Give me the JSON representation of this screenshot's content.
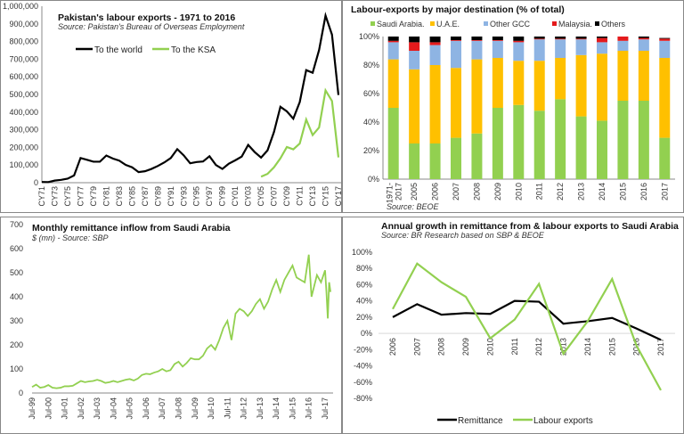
{
  "colors": {
    "black": "#000000",
    "green": "#92d050",
    "yellow": "#ffc000",
    "blue": "#8eb4e3",
    "red": "#e41a1c",
    "gray": "#d9d9d9"
  },
  "chart_data": [
    {
      "type": "line",
      "title": "Pakistan's labour exports - 1971 to 2016",
      "subtitle": "Source: Pakistan's Bureau of Overseas Employment",
      "ylim": [
        0,
        1000000
      ],
      "yticks": [
        "0",
        "100,000",
        "200,000",
        "300,000",
        "400,000",
        "500,000",
        "600,000",
        "700,000",
        "800,000",
        "900,000",
        "1,000,000"
      ],
      "xticks": [
        "CY71",
        "CY73",
        "CY75",
        "CY77",
        "CY79",
        "CY81",
        "CY83",
        "CY85",
        "CY87",
        "CY89",
        "CY91",
        "CY93",
        "CY95",
        "CY97",
        "CY99",
        "CY01",
        "CY03",
        "CY05",
        "CY07",
        "CY09",
        "CY11",
        "CY13",
        "CY15",
        "CY17"
      ],
      "x_start": 1971,
      "legend": "top-left",
      "series": [
        {
          "name": "To the world",
          "color": "#000000",
          "start": 1971,
          "values": [
            4000,
            3500,
            12000,
            16000,
            23000,
            41000,
            140000,
            130000,
            119000,
            119000,
            154000,
            137000,
            125000,
            101000,
            87000,
            60000,
            65000,
            78000,
            95000,
            115000,
            140000,
            190000,
            155000,
            110000,
            117000,
            120000,
            150000,
            100000,
            78000,
            108000,
            127000,
            148000,
            214000,
            174000,
            142000,
            183000,
            287000,
            430000,
            404000,
            363000,
            457000,
            638000,
            623000,
            752000,
            947000,
            839000,
            497000
          ]
        },
        {
          "name": "To the KSA",
          "color": "#92d050",
          "start": 2005,
          "values": [
            34000,
            50000,
            87000,
            138000,
            202000,
            189000,
            222000,
            358000,
            270000,
            313000,
            523000,
            463000,
            143000
          ]
        }
      ]
    },
    {
      "type": "bar",
      "stacked": true,
      "title": "Labour-exports by major destination (% of total)",
      "source": "Source: BEOE",
      "ylim": [
        0,
        100
      ],
      "yticks": [
        "0%",
        "20%",
        "40%",
        "60%",
        "80%",
        "100%"
      ],
      "categories": [
        "1971-2017",
        "2005",
        "2006",
        "2007",
        "2008",
        "2009",
        "2010",
        "2011",
        "2012",
        "2013",
        "2014",
        "2015",
        "2016",
        "2017"
      ],
      "legend": "top",
      "series": [
        {
          "name": "Saudi Arabia.",
          "color": "#92d050",
          "values": [
            50,
            25,
            25,
            29,
            32,
            50,
            52,
            48,
            56,
            44,
            41,
            55,
            55,
            29
          ]
        },
        {
          "name": "U.A.E.",
          "color": "#ffc000",
          "values": [
            34,
            52,
            55,
            49,
            52,
            35,
            31,
            35,
            29,
            43,
            47,
            35,
            35,
            56
          ]
        },
        {
          "name": "Other GCC",
          "color": "#8eb4e3",
          "values": [
            12,
            13,
            14,
            19,
            13,
            12,
            13,
            15,
            13,
            11,
            8,
            7,
            8,
            12
          ]
        },
        {
          "name": "Malaysia.",
          "color": "#e41a1c",
          "values": [
            1,
            6,
            2,
            0.5,
            0.5,
            0.5,
            1,
            0.5,
            0.5,
            0.5,
            3,
            3,
            1,
            1.5
          ]
        },
        {
          "name": "Others",
          "color": "#000000",
          "values": [
            3,
            4,
            4,
            2.5,
            2.5,
            2.5,
            3,
            1.5,
            1.5,
            1.5,
            1,
            0,
            1,
            0.5
          ]
        }
      ]
    },
    {
      "type": "line",
      "title": "Monthly remittance inflow from  Saudi Arabia",
      "subtitle": "$ (mn) - Source: SBP",
      "ylim": [
        0,
        700
      ],
      "yticks": [
        "0",
        "100",
        "200",
        "300",
        "400",
        "500",
        "600",
        "700"
      ],
      "xticks": [
        "Jul-99",
        "Jul-00",
        "Jul-01",
        "Jul-02",
        "Jul-03",
        "Jul-04",
        "Jul-05",
        "Jul-06",
        "Jul-07",
        "Jul-08",
        "Jul-09",
        "Jul-10",
        "Jul-11",
        "Jul-12",
        "Jul-13",
        "Jul-14",
        "Jul-15",
        "Jul-16",
        "Jul-17"
      ],
      "series": [
        {
          "color": "#92d050",
          "x": [
            "Jul-99",
            "Oct-99",
            "Jan-00",
            "Apr-00",
            "Jul-00",
            "Oct-00",
            "Jan-01",
            "Apr-01",
            "Jul-01",
            "Oct-01",
            "Jan-02",
            "Apr-02",
            "Jul-02",
            "Oct-02",
            "Jan-03",
            "Apr-03",
            "Jul-03",
            "Oct-03",
            "Jan-04",
            "Apr-04",
            "Jul-04",
            "Oct-04",
            "Jan-05",
            "Apr-05",
            "Jul-05",
            "Oct-05",
            "Jan-06",
            "Apr-06",
            "Jul-06",
            "Oct-06",
            "Jan-07",
            "Apr-07",
            "Jul-07",
            "Oct-07",
            "Jan-08",
            "Apr-08",
            "Jul-08",
            "Oct-08",
            "Jan-09",
            "Apr-09",
            "Jul-09",
            "Oct-09",
            "Jan-10",
            "Apr-10",
            "Jul-10",
            "Oct-10",
            "Jan-11",
            "Apr-11",
            "Jul-11",
            "Oct-11",
            "Jan-12",
            "Apr-12",
            "Jul-12",
            "Oct-12",
            "Jan-13",
            "Apr-13",
            "Jul-13",
            "Oct-13",
            "Jan-14",
            "Apr-14",
            "Jul-14",
            "Oct-14",
            "Jan-15",
            "Apr-15",
            "Jul-15",
            "Oct-15",
            "Jan-16",
            "Apr-16",
            "Jul-16",
            "Sep-16",
            "Jan-17",
            "Apr-17",
            "Jul-17",
            "Aug-17",
            "Sep-17",
            "Oct-17",
            "Nov-17"
          ],
          "values": [
            25,
            35,
            22,
            25,
            33,
            22,
            20,
            22,
            28,
            28,
            30,
            40,
            50,
            45,
            48,
            50,
            55,
            50,
            42,
            45,
            50,
            45,
            50,
            55,
            58,
            52,
            60,
            75,
            80,
            78,
            85,
            90,
            100,
            90,
            95,
            120,
            130,
            110,
            125,
            145,
            140,
            140,
            155,
            185,
            200,
            180,
            220,
            270,
            300,
            220,
            330,
            350,
            340,
            320,
            340,
            370,
            390,
            350,
            380,
            430,
            470,
            420,
            470,
            500,
            530,
            480,
            470,
            460,
            575,
            400,
            490,
            460,
            510,
            420,
            310,
            460,
            420
          ]
        }
      ]
    },
    {
      "type": "line",
      "title": "Annual growth in remittance from & labour exports to Saudi Arabia",
      "subtitle": "Source: BR Research based on SBP & BEOE",
      "ylim": [
        -80,
        100
      ],
      "yticks": [
        "-80%",
        "-60%",
        "-40%",
        "-20%",
        "0%",
        "20%",
        "40%",
        "60%",
        "80%",
        "100%"
      ],
      "categories": [
        "2006",
        "2007",
        "2008",
        "2009",
        "2010",
        "2011",
        "2012",
        "2013",
        "2014",
        "2015",
        "2016",
        "2017"
      ],
      "legend": "bottom",
      "series": [
        {
          "name": "Remittance",
          "color": "#000000",
          "values": [
            20,
            36,
            23,
            25,
            24,
            40,
            39,
            12,
            15,
            19,
            6,
            -8
          ]
        },
        {
          "name": "Labour exports",
          "color": "#92d050",
          "values": [
            30,
            86,
            63,
            45,
            -6,
            17,
            61,
            -25,
            15,
            67,
            -15,
            -70
          ]
        }
      ]
    }
  ]
}
